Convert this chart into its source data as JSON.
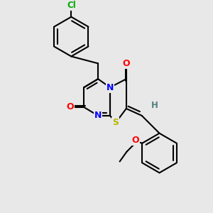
{
  "bg_color": "#e8e8e8",
  "atom_colors": {
    "C": "#000000",
    "N": "#0000ff",
    "O": "#ff0000",
    "S": "#b8b800",
    "Cl": "#00aa00",
    "H": "#508080"
  },
  "bond_color": "#000000"
}
